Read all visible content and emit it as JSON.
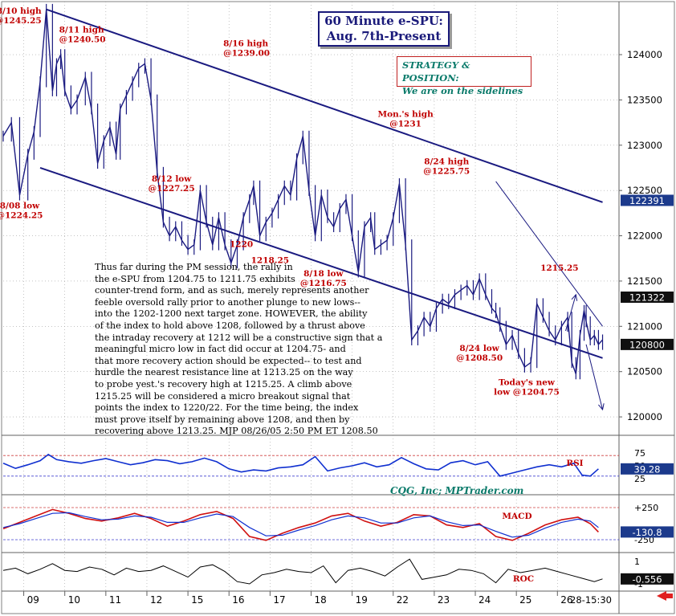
{
  "title": [
    "60 Minute e-SPU:",
    "Aug. 7th-Present"
  ],
  "strategy": {
    "heading": "STRATEGY & POSITION:",
    "text": "We are on the sidelines"
  },
  "credit": "CQG, Inc; MPTrader.com",
  "commentary": [
    "Thus far during the PM session, the rally in",
    "the e-SPU from 1204.75 to 1211.75 exhibits",
    "counter-trend form, and as such, merely represents another",
    "feeble oversold rally prior to another plunge to new lows--",
    "into the 1202-1200 next target zone.  HOWEVER, the ability",
    "of the index to hold above 1208, followed by a thrust above",
    "the intraday recovery at 1212 will be a constructive sign that a",
    "meaningful micro low in fact did occur at 1204.75- and",
    "that more recovery action should be expected-- to test and",
    "hurdle the nearest resistance line at 1213.25 on the way",
    "to probe yest.'s recovery high at 1215.25. A climb above",
    "1215.25 will be considered a micro breakout signal that",
    "points the index to 1220/22. For the time being, the index",
    "must prove itself by remaining above 1208, and then by",
    "recovering above 1213.25. MJP 08/26/05 2:50 PM ET 1208.50"
  ],
  "colors": {
    "price_bars": "#1a1a80",
    "channel": "#1a1a80",
    "annotation": "#c00000",
    "rsi_line": "#1030d0",
    "macd_line": "#d01010",
    "signal_line": "#1030d0",
    "tag_blue": "#1c3a8c",
    "tag_dark": "#101010",
    "grid": "#a0a0a0",
    "ref_red": "#d04040",
    "ref_blue": "#4040d0",
    "arrow": "#e02020"
  },
  "chart_data": {
    "type": "line",
    "price_axis": {
      "ylim": [
        1198500,
        1245500
      ],
      "ticks": [
        1200000,
        1205000,
        1210000,
        1215000,
        1220000,
        1225000,
        1230000,
        1235000,
        1240000
      ],
      "tick_labels": [
        "120000",
        "120500",
        "121000",
        "121500",
        "122000",
        "122500",
        "123000",
        "123500",
        "124000"
      ]
    },
    "x_axis": {
      "range": [
        0,
        15
      ],
      "ticks": [
        1,
        2,
        3,
        4,
        5,
        6,
        7,
        8,
        9,
        10,
        11,
        12,
        13,
        14
      ],
      "tick_labels": [
        "09",
        "10",
        "11",
        "12",
        "15",
        "16",
        "17",
        "18",
        "19",
        "22",
        "23",
        "24",
        "25",
        "26"
      ],
      "right_label": "28-15:30"
    },
    "price_tags": [
      {
        "value": 1223.91,
        "label": "122391",
        "style": "tag_blue"
      },
      {
        "value": 1213.22,
        "label": "121322",
        "style": "tag_dark"
      },
      {
        "value": 1208.0,
        "label": "120800",
        "style": "tag_dark"
      }
    ],
    "series": [
      {
        "name": "e-SPU 60 Minute",
        "x": [
          0.0,
          0.2,
          0.4,
          0.6,
          0.75,
          0.9,
          1.05,
          1.2,
          1.3,
          1.4,
          1.5,
          1.65,
          1.8,
          2.0,
          2.15,
          2.3,
          2.45,
          2.6,
          2.75,
          2.85,
          3.0,
          3.15,
          3.3,
          3.45,
          3.6,
          3.75,
          3.9,
          4.05,
          4.2,
          4.35,
          4.5,
          4.65,
          4.8,
          4.95,
          5.1,
          5.25,
          5.4,
          5.55,
          5.7,
          5.85,
          6.0,
          6.1,
          6.25,
          6.4,
          6.55,
          6.7,
          6.85,
          7.0,
          7.15,
          7.3,
          7.45,
          7.6,
          7.75,
          7.9,
          8.05,
          8.2,
          8.35,
          8.5,
          8.65,
          8.8,
          8.95,
          9.05,
          9.2,
          9.35,
          9.5,
          9.65,
          9.8,
          9.95,
          10.1,
          10.25,
          10.4,
          10.55,
          10.7,
          10.85,
          11.0,
          11.15,
          11.3,
          11.45,
          11.6,
          11.75,
          11.9,
          12.0,
          12.1,
          12.25,
          12.4,
          12.55,
          12.7,
          12.85,
          13.0,
          13.15,
          13.3,
          13.45,
          13.6,
          13.75,
          13.85,
          13.95,
          14.05,
          14.15,
          14.2,
          14.3,
          14.4,
          14.5,
          14.6
        ],
        "values": [
          1231.0,
          1232.5,
          1224.5,
          1229.0,
          1231.5,
          1237.0,
          1245.0,
          1236.0,
          1239.0,
          1240.0,
          1236.0,
          1234.0,
          1235.0,
          1237.5,
          1234.0,
          1228.0,
          1230.5,
          1232.0,
          1229.0,
          1234.0,
          1235.5,
          1237.0,
          1238.5,
          1239.0,
          1235.0,
          1227.0,
          1221.5,
          1220.0,
          1221.0,
          1219.5,
          1218.5,
          1219.0,
          1225.0,
          1221.5,
          1219.0,
          1222.0,
          1219.0,
          1217.0,
          1219.0,
          1222.0,
          1224.0,
          1225.5,
          1220.0,
          1221.5,
          1222.5,
          1224.0,
          1225.5,
          1224.5,
          1228.5,
          1231.0,
          1225.0,
          1220.0,
          1224.5,
          1222.0,
          1221.0,
          1223.0,
          1224.0,
          1220.0,
          1216.0,
          1221.0,
          1222.0,
          1218.5,
          1219.0,
          1219.5,
          1222.0,
          1225.75,
          1219.0,
          1208.5,
          1209.5,
          1211.0,
          1210.0,
          1212.0,
          1213.0,
          1212.5,
          1213.5,
          1214.0,
          1214.5,
          1213.5,
          1215.25,
          1213.5,
          1212.0,
          1211.5,
          1210.0,
          1208.0,
          1209.0,
          1207.0,
          1205.5,
          1206.0,
          1212.5,
          1211.0,
          1209.5,
          1208.5,
          1210.0,
          1211.0,
          1206.0,
          1204.75,
          1209.0,
          1211.75,
          1210.5,
          1208.5,
          1209.0,
          1208.0,
          1208.5
        ]
      },
      {
        "name": "RSI",
        "ylim": [
          0,
          100
        ],
        "ticks": [
          25,
          50,
          75
        ],
        "ref_lines": [
          70,
          30
        ],
        "x": [
          0.0,
          0.3,
          0.6,
          0.9,
          1.1,
          1.3,
          1.6,
          1.9,
          2.2,
          2.5,
          2.8,
          3.1,
          3.4,
          3.7,
          4.0,
          4.3,
          4.6,
          4.9,
          5.2,
          5.5,
          5.8,
          6.1,
          6.4,
          6.7,
          7.0,
          7.3,
          7.6,
          7.9,
          8.2,
          8.5,
          8.8,
          9.1,
          9.4,
          9.7,
          10.0,
          10.3,
          10.6,
          10.9,
          11.2,
          11.5,
          11.8,
          12.1,
          12.4,
          12.7,
          13.0,
          13.3,
          13.6,
          13.9,
          14.1,
          14.3,
          14.5
        ],
        "values": [
          55,
          45,
          52,
          60,
          72,
          62,
          58,
          55,
          60,
          64,
          58,
          52,
          56,
          62,
          60,
          54,
          58,
          65,
          58,
          44,
          38,
          42,
          40,
          46,
          48,
          52,
          68,
          40,
          46,
          50,
          56,
          48,
          52,
          66,
          54,
          44,
          42,
          56,
          60,
          52,
          58,
          30,
          36,
          42,
          48,
          52,
          48,
          55,
          32,
          30,
          44
        ],
        "value_label": "39.28",
        "label": "RSI"
      },
      {
        "name": "MACD",
        "ylim": [
          -400,
          400
        ],
        "ticks": [
          -250,
          250
        ],
        "tick_labels": [
          "-250",
          "+250"
        ],
        "ref_lines": [
          250,
          -250
        ],
        "x": [
          0.0,
          0.4,
          0.8,
          1.2,
          1.6,
          2.0,
          2.4,
          2.8,
          3.2,
          3.6,
          4.0,
          4.4,
          4.8,
          5.2,
          5.6,
          6.0,
          6.4,
          6.8,
          7.2,
          7.6,
          8.0,
          8.4,
          8.8,
          9.2,
          9.6,
          10.0,
          10.4,
          10.8,
          11.2,
          11.6,
          12.0,
          12.4,
          12.8,
          13.2,
          13.6,
          14.0,
          14.3,
          14.5
        ],
        "values": [
          -80,
          20,
          120,
          220,
          160,
          80,
          40,
          90,
          160,
          80,
          -40,
          40,
          140,
          190,
          80,
          -200,
          -260,
          -150,
          -60,
          10,
          120,
          160,
          40,
          -40,
          20,
          140,
          120,
          -20,
          -60,
          0,
          -200,
          -260,
          -150,
          -20,
          60,
          100,
          0,
          -130
        ],
        "signal": [
          -60,
          0,
          80,
          160,
          170,
          110,
          60,
          70,
          120,
          100,
          20,
          20,
          90,
          150,
          110,
          -60,
          -190,
          -180,
          -100,
          -30,
          60,
          120,
          90,
          10,
          10,
          90,
          120,
          30,
          -30,
          -20,
          -120,
          -210,
          -180,
          -70,
          20,
          70,
          40,
          -60
        ],
        "value_label": "-130.8",
        "label": "MACD"
      },
      {
        "name": "ROC",
        "ylim": [
          -1.5,
          1.5
        ],
        "ticks": [
          1,
          -1
        ],
        "tick_labels": [
          "1",
          "-1"
        ],
        "x": [
          0.0,
          0.3,
          0.6,
          0.9,
          1.2,
          1.5,
          1.8,
          2.1,
          2.4,
          2.7,
          3.0,
          3.3,
          3.6,
          3.9,
          4.2,
          4.5,
          4.8,
          5.1,
          5.4,
          5.7,
          6.0,
          6.3,
          6.6,
          6.9,
          7.2,
          7.5,
          7.8,
          8.1,
          8.4,
          8.7,
          9.0,
          9.3,
          9.6,
          9.9,
          10.2,
          10.5,
          10.8,
          11.1,
          11.4,
          11.7,
          12.0,
          12.3,
          12.6,
          12.9,
          13.2,
          13.5,
          13.8,
          14.1,
          14.4,
          14.6
        ],
        "values": [
          0.2,
          0.4,
          -0.1,
          0.3,
          0.8,
          0.2,
          0.1,
          0.5,
          0.3,
          -0.2,
          0.4,
          0.1,
          0.2,
          0.6,
          0.1,
          -0.4,
          0.5,
          0.7,
          0.1,
          -0.8,
          -1.0,
          -0.2,
          0.0,
          0.3,
          0.1,
          0.0,
          0.6,
          -0.9,
          0.2,
          0.4,
          0.1,
          -0.3,
          0.5,
          1.2,
          -0.6,
          -0.4,
          -0.2,
          0.3,
          0.2,
          -0.1,
          -0.9,
          0.3,
          0.0,
          0.2,
          0.4,
          0.1,
          -0.2,
          -0.5,
          -0.8,
          -0.56
        ],
        "value_label": "-0.556",
        "label": "ROC"
      }
    ],
    "channel_lines": [
      {
        "name": "upper",
        "x1": 1.05,
        "y1": 1245.0,
        "x2": 14.6,
        "y2": 1223.7
      },
      {
        "name": "lower",
        "x1": 0.9,
        "y1": 1227.5,
        "x2": 14.6,
        "y2": 1206.5
      },
      {
        "name": "resistance",
        "x1": 12.0,
        "y1": 1226.0,
        "x2": 14.6,
        "y2": 1210.0
      }
    ],
    "arrows": [
      {
        "name": "up",
        "x1": 13.7,
        "y1": 1209.5,
        "x2": 13.95,
        "y2": 1213.5
      },
      {
        "name": "down",
        "x1": 14.2,
        "y1": 1208.0,
        "x2": 14.6,
        "y2": 1200.8
      }
    ],
    "annotations": [
      {
        "lines": [
          "8/10 high",
          "@1245.25"
        ],
        "x": 1.05,
        "y": 1245.25,
        "anchor": "end"
      },
      {
        "lines": [
          "8/11 high",
          "@1240.50"
        ],
        "x": 1.4,
        "y": 1240.5,
        "anchor": "start"
      },
      {
        "lines": [
          "8/16 high",
          "@1239.00"
        ],
        "x": 5.4,
        "y": 1239.0,
        "anchor": "start"
      },
      {
        "lines": [
          "8/08 low",
          "@1224.25"
        ],
        "x": 0.4,
        "y": 1224.25,
        "anchor": "below"
      },
      {
        "lines": [
          "8/12 low",
          "@1227.25"
        ],
        "x": 4.1,
        "y": 1227.25,
        "anchor": "below"
      },
      {
        "lines": [
          "1220"
        ],
        "x": 5.8,
        "y": 1220.0,
        "anchor": "below"
      },
      {
        "lines": [
          "1218.25"
        ],
        "x": 6.5,
        "y": 1218.25,
        "anchor": "below"
      },
      {
        "lines": [
          "8/18 low",
          "@1216.75"
        ],
        "x": 7.8,
        "y": 1216.75,
        "anchor": "below"
      },
      {
        "lines": [
          "Mon.'s high",
          "@1231"
        ],
        "x": 9.8,
        "y": 1231.0,
        "anchor": "above"
      },
      {
        "lines": [
          "8/24 high",
          "@1225.75"
        ],
        "x": 10.8,
        "y": 1225.75,
        "anchor": "above"
      },
      {
        "lines": [
          "1215.25"
        ],
        "x": 13.55,
        "y": 1215.25,
        "anchor": "above"
      },
      {
        "lines": [
          "8/24 low",
          "@1208.50"
        ],
        "x": 11.6,
        "y": 1208.5,
        "anchor": "below"
      },
      {
        "lines": [
          "Today's new",
          "low @1204.75"
        ],
        "x": 12.75,
        "y": 1204.75,
        "anchor": "below"
      }
    ]
  }
}
